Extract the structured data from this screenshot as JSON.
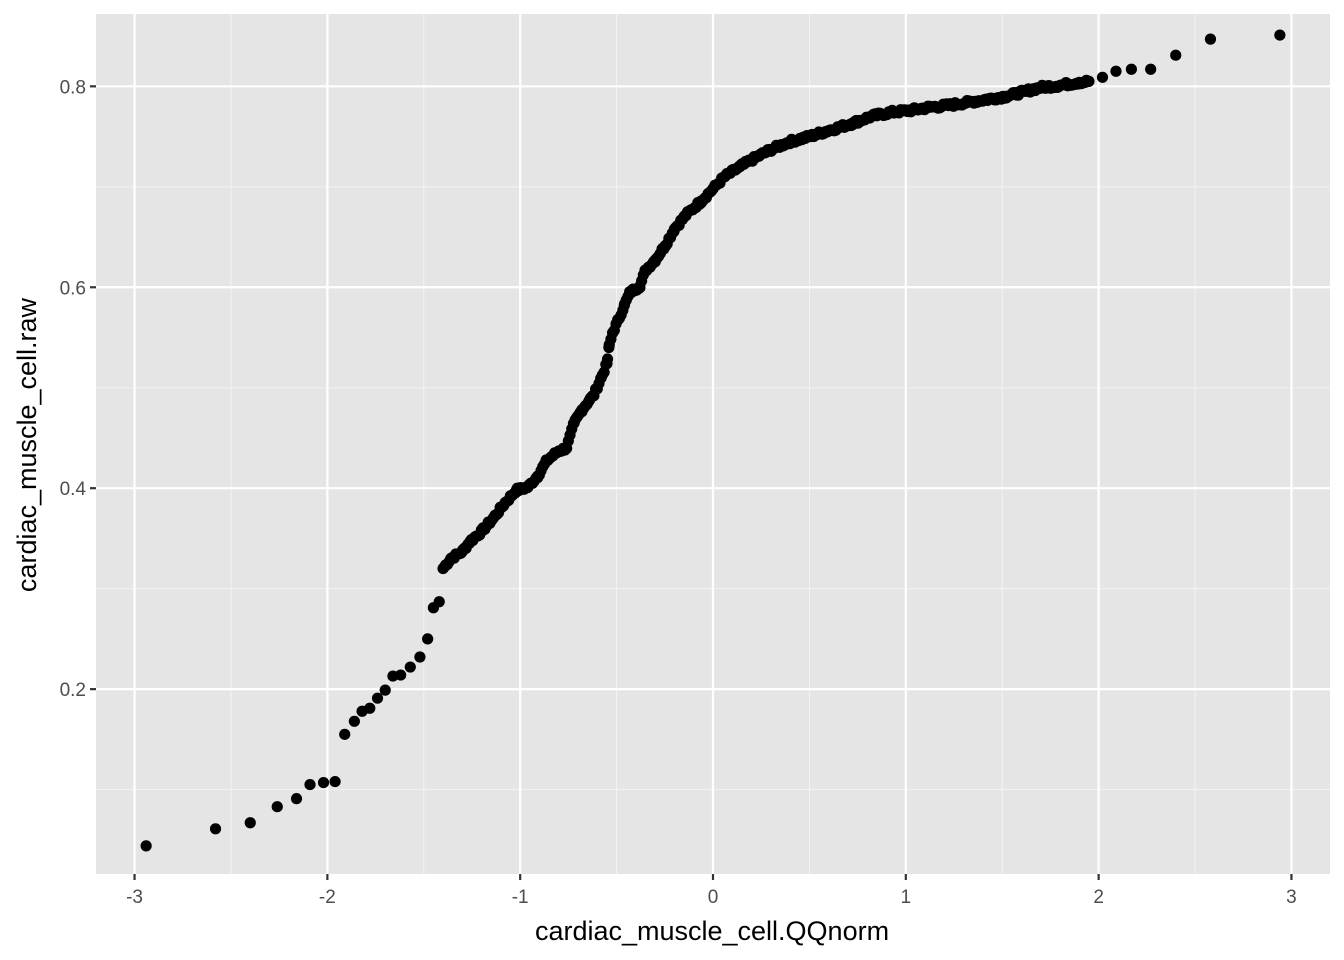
{
  "chart_data": {
    "type": "scatter",
    "title": "",
    "xlabel": "cardiac_muscle_cell.QQnorm",
    "ylabel": "cardiac_muscle_cell.raw",
    "xlim": [
      -3.2,
      3.2
    ],
    "ylim": [
      0.016,
      0.872
    ],
    "x_ticks": [
      -3,
      -2,
      -1,
      0,
      1,
      2,
      3
    ],
    "x_tick_labels": [
      "-3",
      "-2",
      "-1",
      "0",
      "1",
      "2",
      "3"
    ],
    "y_ticks": [
      0.2,
      0.4,
      0.6,
      0.8
    ],
    "y_tick_labels": [
      "0.2",
      "0.4",
      "0.6",
      "0.8"
    ],
    "grid": true,
    "legend": "none",
    "point_color": "#000000",
    "panel_color": "#e5e5e5",
    "anchors": [
      [
        -2.94,
        0.044
      ],
      [
        -2.58,
        0.061
      ],
      [
        -2.4,
        0.067
      ],
      [
        -2.26,
        0.083
      ],
      [
        -2.16,
        0.091
      ],
      [
        -2.09,
        0.105
      ],
      [
        -2.02,
        0.107
      ],
      [
        -1.96,
        0.108
      ],
      [
        -1.91,
        0.155
      ],
      [
        -1.86,
        0.168
      ],
      [
        -1.82,
        0.178
      ],
      [
        -1.78,
        0.181
      ],
      [
        -1.74,
        0.191
      ],
      [
        -1.7,
        0.199
      ],
      [
        -1.66,
        0.213
      ],
      [
        -1.62,
        0.214
      ],
      [
        -1.57,
        0.222
      ],
      [
        -1.52,
        0.232
      ],
      [
        -1.48,
        0.25
      ],
      [
        -1.45,
        0.281
      ],
      [
        -1.42,
        0.287
      ],
      [
        -1.4,
        0.32
      ],
      [
        -1.36,
        0.33
      ],
      [
        -1.3,
        0.337
      ],
      [
        -1.26,
        0.347
      ],
      [
        -1.2,
        0.357
      ],
      [
        -1.14,
        0.37
      ],
      [
        -1.08,
        0.385
      ],
      [
        -1.02,
        0.398
      ],
      [
        -0.96,
        0.401
      ],
      [
        -0.91,
        0.412
      ],
      [
        -0.86,
        0.428
      ],
      [
        -0.8,
        0.437
      ],
      [
        -0.76,
        0.44
      ],
      [
        -0.72,
        0.465
      ],
      [
        -0.68,
        0.478
      ],
      [
        -0.64,
        0.488
      ],
      [
        -0.62,
        0.492
      ],
      [
        -0.58,
        0.51
      ],
      [
        -0.55,
        0.524
      ],
      [
        -0.54,
        0.54
      ],
      [
        -0.52,
        0.555
      ],
      [
        -0.49,
        0.568
      ],
      [
        -0.46,
        0.582
      ],
      [
        -0.43,
        0.595
      ],
      [
        -0.38,
        0.601
      ],
      [
        -0.35,
        0.617
      ],
      [
        -0.3,
        0.627
      ],
      [
        -0.25,
        0.641
      ],
      [
        -0.2,
        0.658
      ],
      [
        -0.14,
        0.672
      ],
      [
        -0.06,
        0.686
      ],
      [
        0.0,
        0.698
      ],
      [
        0.06,
        0.71
      ],
      [
        0.14,
        0.72
      ],
      [
        0.22,
        0.729
      ],
      [
        0.3,
        0.737
      ],
      [
        0.4,
        0.745
      ],
      [
        0.5,
        0.75
      ],
      [
        0.6,
        0.756
      ],
      [
        0.72,
        0.763
      ],
      [
        0.82,
        0.77
      ],
      [
        0.92,
        0.774
      ],
      [
        1.02,
        0.776
      ],
      [
        1.12,
        0.779
      ],
      [
        1.22,
        0.781
      ],
      [
        1.32,
        0.784
      ],
      [
        1.42,
        0.787
      ],
      [
        1.52,
        0.79
      ],
      [
        1.62,
        0.795
      ],
      [
        1.7,
        0.799
      ],
      [
        1.8,
        0.801
      ],
      [
        1.9,
        0.804
      ],
      [
        1.95,
        0.805
      ],
      [
        2.02,
        0.809
      ],
      [
        2.09,
        0.815
      ],
      [
        2.17,
        0.817
      ],
      [
        2.27,
        0.817
      ],
      [
        2.4,
        0.831
      ],
      [
        2.58,
        0.847
      ],
      [
        2.94,
        0.851
      ]
    ],
    "point_count": 460
  }
}
